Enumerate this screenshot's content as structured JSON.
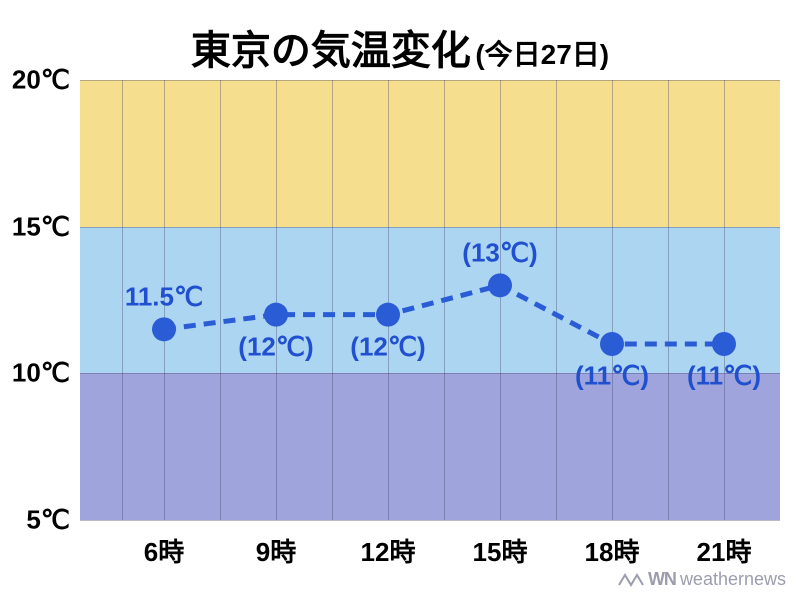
{
  "title": {
    "main": "東京の気温変化",
    "sub": "(今日27日)",
    "main_fontsize": 40,
    "sub_fontsize": 28,
    "color": "#000000"
  },
  "chart": {
    "type": "line",
    "ylim": [
      5,
      20
    ],
    "ytick_step": 5,
    "y_unit": "℃",
    "x_categories": [
      "6時",
      "9時",
      "12時",
      "15時",
      "18時",
      "21時"
    ],
    "x_positions": [
      0.12,
      0.28,
      0.44,
      0.6,
      0.76,
      0.92
    ],
    "series": {
      "values": [
        11.5,
        12,
        12,
        13,
        11,
        11
      ],
      "labels": [
        "11.5℃",
        "(12℃)",
        "(12℃)",
        "(13℃)",
        "(11℃)",
        "(11℃)"
      ],
      "label_positions": [
        "above",
        "below",
        "below",
        "above",
        "below",
        "below"
      ],
      "line_color": "#2a5cd6",
      "marker_color": "#2a5cd6",
      "marker_radius": 12,
      "line_width": 5,
      "dash": "12 8",
      "label_color": "#2050d0",
      "label_fontsize": 26
    },
    "bands": [
      {
        "y_from": 15,
        "y_to": 20,
        "color": "#f3d87a"
      },
      {
        "y_from": 10,
        "y_to": 15,
        "color": "#9dcef0"
      },
      {
        "y_from": 5,
        "y_to": 10,
        "color": "#8e95d6"
      }
    ],
    "grid_color": "rgba(60,60,100,0.35)",
    "background_color": "#ffffff",
    "axis_label_fontsize": 26,
    "axis_label_color": "#000000"
  },
  "attribution": {
    "text": "weathernews",
    "prefix": "WN",
    "color": "rgba(90,90,120,0.6)",
    "fontsize": 18
  }
}
